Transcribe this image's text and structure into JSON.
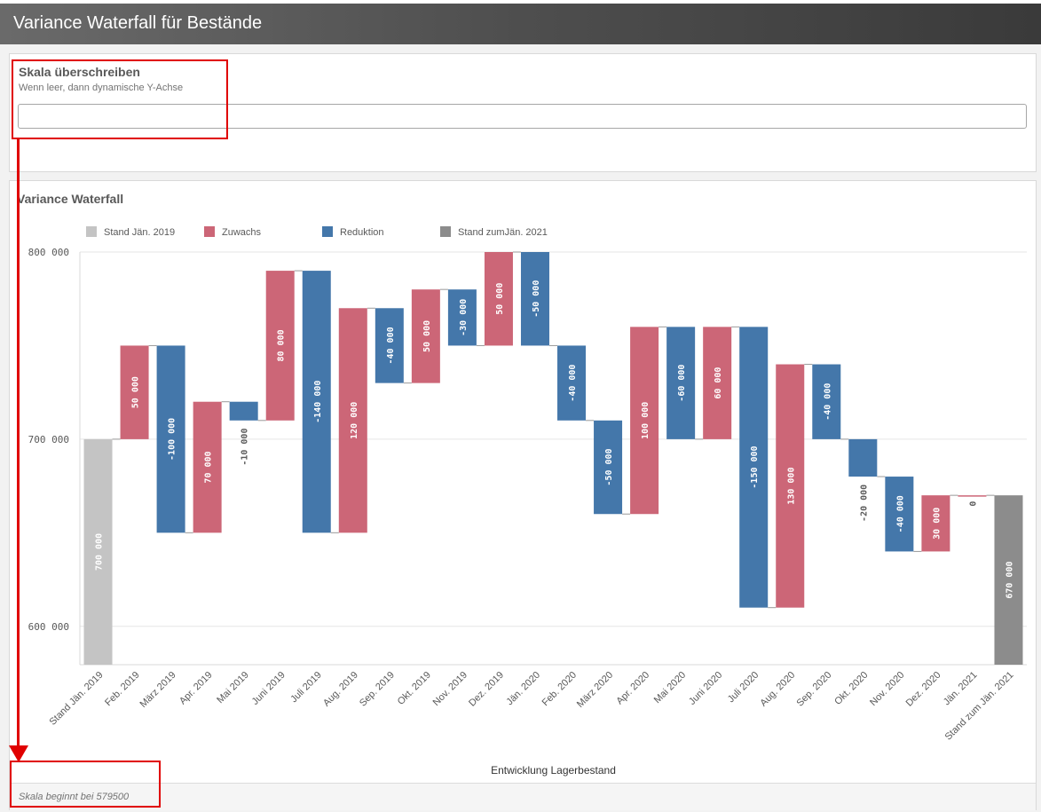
{
  "app": {
    "title": "Variance Waterfall für Bestände"
  },
  "scale_panel": {
    "heading": "Skala überschreiben",
    "subtitle": "Wenn leer, dann dynamische Y-Achse",
    "input_value": "",
    "input_placeholder": ""
  },
  "chart_panel": {
    "heading": "Variance Waterfall",
    "footer_note": "Skala beginnt bei 579500"
  },
  "colors": {
    "start": "#c4c4c4",
    "increase": "#cc6677",
    "decrease": "#4477aa",
    "end": "#8c8c8c",
    "annotation": "#e00000"
  },
  "chart_data": {
    "type": "bar",
    "subtype": "waterfall",
    "title": "Variance Waterfall",
    "xlabel": "Entwicklung Lagerbestand",
    "ylabel": "",
    "ylim": [
      579500,
      800000
    ],
    "yticks": [
      600000,
      700000,
      800000
    ],
    "ytick_labels": [
      "600 000",
      "700 000",
      "800 000"
    ],
    "grid": true,
    "legend_position": "top-left",
    "legend": [
      {
        "label": "Stand Jän. 2019",
        "kind": "start"
      },
      {
        "label": "Zuwachs",
        "kind": "increase"
      },
      {
        "label": "Reduktion",
        "kind": "decrease"
      },
      {
        "label": "Stand zumJän. 2021",
        "kind": "end"
      }
    ],
    "categories": [
      "Stand Jän. 2019",
      "Feb. 2019",
      "März 2019",
      "Apr. 2019",
      "Mai 2019",
      "Juni 2019",
      "Juli 2019",
      "Aug. 2019",
      "Sep. 2019",
      "Okt. 2019",
      "Nov. 2019",
      "Dez. 2019",
      "Jän. 2020",
      "Feb. 2020",
      "März 2020",
      "Apr. 2020",
      "Mai 2020",
      "Juni 2020",
      "Juli 2020",
      "Aug. 2020",
      "Sep. 2020",
      "Okt. 2020",
      "Nov. 2020",
      "Dez. 2020",
      "Jän. 2021",
      "Stand zum Jän. 2021"
    ],
    "values": [
      700000,
      50000,
      -100000,
      70000,
      -10000,
      80000,
      -140000,
      120000,
      -40000,
      50000,
      -30000,
      50000,
      -50000,
      -40000,
      -50000,
      100000,
      -60000,
      60000,
      -150000,
      130000,
      -40000,
      -20000,
      -40000,
      30000,
      0,
      670000
    ],
    "value_labels": [
      "700 000",
      "50 000",
      "-100 000",
      "70 000",
      "-10 000",
      "80 000",
      "-140 000",
      "120 000",
      "-40 000",
      "50 000",
      "-30 000",
      "50 000",
      "-50 000",
      "-40 000",
      "-50 000",
      "100 000",
      "-60 000",
      "60 000",
      "-150 000",
      "130 000",
      "-40 000",
      "-20 000",
      "-40 000",
      "30 000",
      "0",
      "670 000"
    ]
  }
}
